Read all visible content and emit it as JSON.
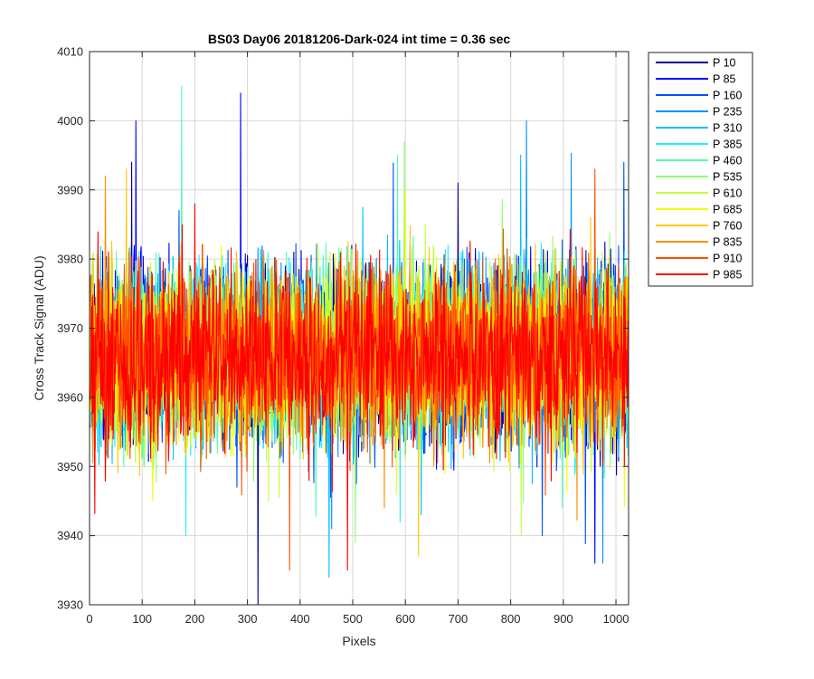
{
  "chart_data": {
    "type": "line",
    "title": "BS03 Day06 20181206-Dark-024 int time = 0.36 sec",
    "xlabel": "Pixels",
    "ylabel": "Cross Track Signal (ADU)",
    "xlim": [
      0,
      1024
    ],
    "ylim": [
      3930,
      4010
    ],
    "xticks": [
      0,
      100,
      200,
      300,
      400,
      500,
      600,
      700,
      800,
      900,
      1000
    ],
    "yticks": [
      3930,
      3940,
      3950,
      3960,
      3970,
      3980,
      3990,
      4000,
      4010
    ],
    "grid": true,
    "legend_position": "outside-top-right",
    "x_range": [
      1,
      1024
    ],
    "noise_mean": 3966,
    "noise_band": [
      3953,
      3983
    ],
    "series": [
      {
        "name": "P 10",
        "color": "#00008f",
        "spikes": [
          [
            320,
            3930
          ],
          [
            80,
            3994
          ],
          [
            700,
            3991
          ]
        ]
      },
      {
        "name": "P 85",
        "color": "#0000ff",
        "spikes": [
          [
            88,
            4000
          ],
          [
            287,
            4004
          ],
          [
            960,
            3936
          ]
        ]
      },
      {
        "name": "P 160",
        "color": "#0050ff",
        "spikes": [
          [
            280,
            3947
          ],
          [
            860,
            3940
          ],
          [
            1015,
            3994
          ]
        ]
      },
      {
        "name": "P 235",
        "color": "#0090ff",
        "spikes": [
          [
            830,
            4000
          ],
          [
            975,
            3936
          ],
          [
            460,
            3941
          ]
        ]
      },
      {
        "name": "P 310",
        "color": "#00c0ff",
        "spikes": [
          [
            455,
            3934
          ],
          [
            630,
            3943
          ]
        ]
      },
      {
        "name": "P 385",
        "color": "#20efff",
        "spikes": [
          [
            183,
            3940
          ],
          [
            590,
            3942
          ]
        ]
      },
      {
        "name": "P 460",
        "color": "#50ffaf",
        "spikes": [
          [
            175,
            4005
          ],
          [
            585,
            3995
          ]
        ]
      },
      {
        "name": "P 535",
        "color": "#90ff70",
        "spikes": [
          [
            598,
            3997
          ],
          [
            505,
            3939
          ]
        ]
      },
      {
        "name": "P 610",
        "color": "#c0ff40",
        "spikes": [
          [
            820,
            3940
          ],
          [
            340,
            3945
          ]
        ]
      },
      {
        "name": "P 685",
        "color": "#f0ff00",
        "spikes": [
          [
            600,
            3990
          ],
          [
            120,
            3945
          ]
        ]
      },
      {
        "name": "P 760",
        "color": "#ffc800",
        "spikes": [
          [
            625,
            3937
          ],
          [
            70,
            3993
          ]
        ]
      },
      {
        "name": "P 835",
        "color": "#ff9000",
        "spikes": [
          [
            30,
            3992
          ],
          [
            560,
            3944
          ]
        ]
      },
      {
        "name": "P 910",
        "color": "#ff5000",
        "spikes": [
          [
            380,
            3935
          ],
          [
            960,
            3993
          ]
        ]
      },
      {
        "name": "P 985",
        "color": "#ff0000",
        "spikes": [
          [
            490,
            3935
          ],
          [
            200,
            3988
          ]
        ]
      }
    ]
  }
}
